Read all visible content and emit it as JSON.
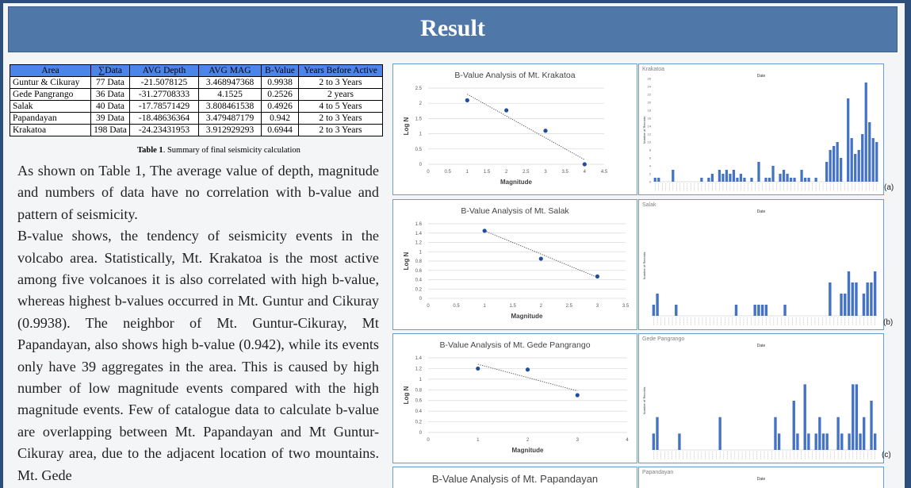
{
  "header": {
    "title": "Result"
  },
  "table": {
    "headers": [
      "Area",
      "∑Data",
      "AVG Depth",
      "AVG MAG",
      "B-Value",
      "Years Before Active"
    ],
    "rows": [
      [
        "Guntur & Cikuray",
        "77 Data",
        "-21.5078125",
        "3.468947368",
        "0.9938",
        "2 to 3 Years"
      ],
      [
        "Gede Pangrango",
        "36 Data",
        "-31.27708333",
        "4.1525",
        "0.2526",
        "2 years"
      ],
      [
        "Salak",
        "40 Data",
        "-17.78571429",
        "3.808461538",
        "0.4926",
        "4 to 5 Years"
      ],
      [
        "Papandayan",
        "39 Data",
        "-18.48636364",
        "3.479487179",
        "0.942",
        "2 to 3 Years"
      ],
      [
        "Krakatoa",
        "198 Data",
        "-24.23431953",
        "3.912929293",
        "0.6944",
        "2 to 3 Years"
      ]
    ],
    "caption_bold": "Table 1",
    "caption_rest": ". Summary of final seismicity calculation"
  },
  "body": {
    "p1": "As shown on Table 1, The average value of depth, magnitude and numbers of data have no correlation with b-value and pattern of seismicity.",
    "p2": "B-value shows, the tendency of seismicity events in the volcabo area. Statistically, Mt. Krakatoa is the most active among five volcanoes it is also correlated with high b-value, whereas highest b-values occurred in Mt. Guntur and Cikuray (0.9938). The neighbor of Mt. Guntur-Cikuray, Mt Papandayan, also shows high b-value (0.942), while its events only have 39 aggregates in the area. This is caused by high number of low magnitude events compared with the high magnitude events. Few of catalogue data to calculate b-value are overlapping between Mt. Papandayan and Mt Guntur-Cikuray area, due to the adjacent location of two mountains. Mt. Gede"
  },
  "tags": {
    "a": "(a)",
    "b": "(b)",
    "c": "(c)"
  },
  "chart_data": [
    {
      "type": "scatter",
      "title": "B-Value Analysis of Mt. Krakatoa",
      "xlabel": "Magnitude",
      "ylabel": "Log N",
      "xlim": [
        0,
        4.5
      ],
      "ylim": [
        0,
        2.5
      ],
      "xticks": [
        "0",
        "0.5",
        "1",
        "1.5",
        "2",
        "2.5",
        "3",
        "3.5",
        "4",
        "4.5"
      ],
      "yticks": [
        "0",
        "0.5",
        "1",
        "1.5",
        "2",
        "2.5"
      ],
      "x": [
        1,
        2,
        3,
        4
      ],
      "y": [
        2.1,
        1.77,
        1.1,
        0
      ],
      "trendline": [
        [
          1,
          2.3
        ],
        [
          4,
          0.15
        ]
      ],
      "color": "#1f4e9c"
    },
    {
      "type": "scatter",
      "title": "B-Value Analysis of Mt. Salak",
      "xlabel": "Magnitude",
      "ylabel": "Log N",
      "xlim": [
        0,
        3.5
      ],
      "ylim": [
        0,
        1.6
      ],
      "xticks": [
        "0",
        "0.5",
        "1",
        "1.5",
        "2",
        "2.5",
        "3",
        "3.5"
      ],
      "yticks": [
        "0",
        "0.2",
        "0.4",
        "0.6",
        "0.8",
        "1",
        "1.2",
        "1.4",
        "1.6"
      ],
      "x": [
        1,
        2,
        3
      ],
      "y": [
        1.45,
        0.85,
        0.47
      ],
      "trendline": [
        [
          1,
          1.45
        ],
        [
          3,
          0.45
        ]
      ],
      "color": "#1f4e9c"
    },
    {
      "type": "scatter",
      "title": "B-Value Analysis of Mt. Gede Pangrango",
      "xlabel": "Magnitude",
      "ylabel": "Log N",
      "xlim": [
        0,
        4
      ],
      "ylim": [
        0,
        1.4
      ],
      "xticks": [
        "0",
        "1",
        "2",
        "3",
        "4"
      ],
      "yticks": [
        "0",
        "0.2",
        "0.4",
        "0.6",
        "0.8",
        "1",
        "1.2",
        "1.4"
      ],
      "x": [
        1,
        2,
        3
      ],
      "y": [
        1.2,
        1.18,
        0.7
      ],
      "trendline": [
        [
          1,
          1.28
        ],
        [
          3,
          0.78
        ]
      ],
      "color": "#1f4e9c"
    },
    {
      "type": "bar",
      "title": "Krakatoa",
      "xlabel": "Date",
      "ylabel": "Number of Records",
      "ylim": [
        0,
        26
      ],
      "yticks": [
        "0",
        "2",
        "4",
        "6",
        "8",
        "10",
        "12",
        "14",
        "16",
        "18",
        "20",
        "22",
        "24",
        "26"
      ],
      "values": [
        1,
        1,
        0,
        0,
        0,
        3,
        0,
        0,
        0,
        0,
        0,
        0,
        0,
        1,
        0,
        1,
        2,
        0,
        3,
        2,
        3,
        2,
        3,
        1,
        2,
        1,
        0,
        1,
        0,
        5,
        0,
        1,
        1,
        4,
        0,
        2,
        3,
        2,
        1,
        1,
        0,
        3,
        1,
        1,
        0,
        1,
        0,
        0,
        5,
        8,
        9,
        10,
        6,
        0,
        21,
        11,
        7,
        8,
        12,
        25,
        15,
        11,
        10
      ],
      "color": "#4472c4"
    },
    {
      "type": "bar",
      "title": "Salak",
      "xlabel": "Date",
      "ylabel": "Number of Records",
      "ylim": [
        0,
        9
      ],
      "values": [
        1,
        2,
        0,
        0,
        0,
        0,
        1,
        0,
        0,
        0,
        0,
        0,
        0,
        0,
        0,
        0,
        0,
        0,
        0,
        0,
        0,
        0,
        1,
        0,
        0,
        0,
        0,
        1,
        1,
        1,
        1,
        0,
        0,
        0,
        0,
        1,
        0,
        0,
        0,
        0,
        0,
        0,
        0,
        0,
        0,
        0,
        0,
        3,
        0,
        0,
        2,
        2,
        4,
        3,
        3,
        0,
        2,
        3,
        3,
        4
      ],
      "color": "#4472c4"
    },
    {
      "type": "bar",
      "title": "Gede Pangrango",
      "xlabel": "Date",
      "ylabel": "Number of Records",
      "ylim": [
        0,
        6
      ],
      "values": [
        1,
        2,
        0,
        0,
        0,
        0,
        0,
        1,
        0,
        0,
        0,
        0,
        0,
        0,
        0,
        0,
        0,
        0,
        2,
        0,
        0,
        0,
        0,
        0,
        0,
        0,
        0,
        0,
        0,
        0,
        0,
        0,
        0,
        2,
        1,
        0,
        0,
        0,
        3,
        1,
        0,
        4,
        1,
        0,
        1,
        2,
        1,
        1,
        0,
        0,
        2,
        1,
        0,
        1,
        4,
        4,
        1,
        2,
        0,
        3,
        1
      ],
      "color": "#4472c4"
    },
    {
      "type": "scatter",
      "title": "B-Value Analysis of Mt. Papandayan"
    },
    {
      "type": "bar",
      "title": "Papandayan",
      "xlabel": "Date"
    }
  ]
}
